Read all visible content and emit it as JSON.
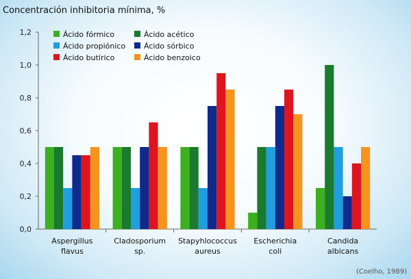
{
  "chart_data": {
    "type": "bar",
    "title": "Concentración inhibitoria mínima, %",
    "source": "(Coelho, 1989)",
    "categories": [
      [
        "Aspergillus",
        "flavus"
      ],
      [
        "Cladosporium",
        "sp."
      ],
      [
        "Stapyhlococcus",
        "aureus"
      ],
      [
        "Escherichia",
        "coli"
      ],
      [
        "Candida",
        "albicans"
      ]
    ],
    "ylim": [
      0,
      1.2
    ],
    "yticks": [
      "0,0",
      "0,2",
      "0,4",
      "0,6",
      "0,8",
      "1,0",
      "1,2"
    ],
    "ytick_values": [
      0,
      0.2,
      0.4,
      0.6,
      0.8,
      1.0,
      1.2
    ],
    "grid": false,
    "legend_position": "top-left",
    "series": [
      {
        "name": "Ácido fórmico",
        "color": "#3cb01e",
        "values": [
          0.5,
          0.5,
          0.5,
          0.1,
          0.25
        ]
      },
      {
        "name": "Ácido acético",
        "color": "#1a7a2e",
        "values": [
          0.5,
          0.5,
          0.5,
          0.5,
          1.0
        ]
      },
      {
        "name": "Ácido propiónico",
        "color": "#1f9ee0",
        "values": [
          0.25,
          0.25,
          0.25,
          0.5,
          0.5
        ]
      },
      {
        "name": "Ácido sórbico",
        "color": "#0d2a8c",
        "values": [
          0.45,
          0.5,
          0.75,
          0.75,
          0.2
        ]
      },
      {
        "name": "Ácido butírico",
        "color": "#e0141e",
        "values": [
          0.45,
          0.65,
          0.95,
          0.85,
          0.4
        ]
      },
      {
        "name": "Ácido benzoico",
        "color": "#f7941d",
        "values": [
          0.5,
          0.5,
          0.85,
          0.7,
          0.5
        ]
      }
    ]
  }
}
